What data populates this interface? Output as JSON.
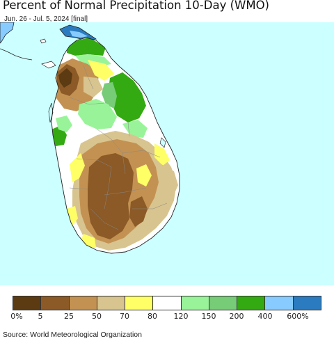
{
  "map": {
    "title": "Percent of Normal Precipitation 10-Day (WMO)",
    "subtitle": "Jun. 26 - Jul. 5, 2024 [final]",
    "source": "Source: World Meteorological Organization",
    "colors": {
      "sea": "#ccffff",
      "land_base": "#ffffff",
      "pct_0_5": "#5c3a12",
      "pct_5_25": "#8c5a26",
      "pct_25_50": "#c39252",
      "pct_50_70": "#d8c48f",
      "pct_70_80": "#ffff66",
      "pct_80_120": "#ffffff",
      "pct_120_150": "#99f499",
      "pct_150_200": "#77cc77",
      "pct_200_400": "#33aa11",
      "pct_400_600": "#88ccff",
      "pct_600_plus": "#2a7bbf",
      "border": "#222222",
      "district_line": "#888888"
    }
  },
  "legend": {
    "swatches": [
      {
        "name": "0-5",
        "color": "#5c3a12"
      },
      {
        "name": "5-25",
        "color": "#8c5a26"
      },
      {
        "name": "25-50",
        "color": "#c39252"
      },
      {
        "name": "50-70",
        "color": "#d8c48f"
      },
      {
        "name": "70-80",
        "color": "#ffff66"
      },
      {
        "name": "80-120",
        "color": "#ffffff"
      },
      {
        "name": "120-150",
        "color": "#99f499"
      },
      {
        "name": "150-200",
        "color": "#77cc77"
      },
      {
        "name": "200-400",
        "color": "#33aa11"
      },
      {
        "name": "400-600",
        "color": "#88ccff"
      },
      {
        "name": "600+",
        "color": "#2a7bbf"
      }
    ],
    "labels": [
      "0%",
      "5",
      "25",
      "50",
      "70",
      "80",
      "120",
      "150",
      "200",
      "400",
      "600%"
    ]
  }
}
